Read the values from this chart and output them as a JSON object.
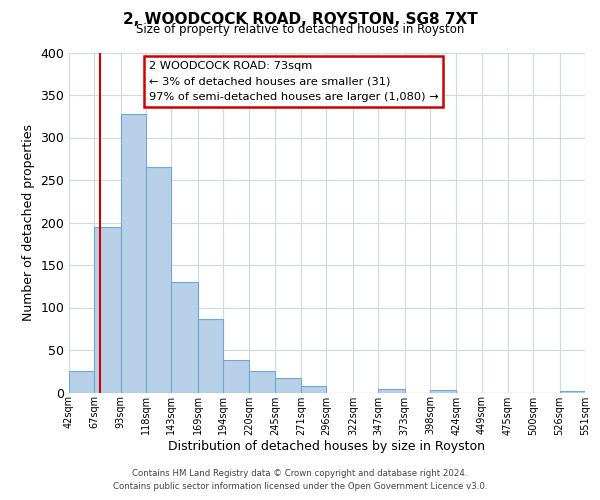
{
  "title": "2, WOODCOCK ROAD, ROYSTON, SG8 7XT",
  "subtitle": "Size of property relative to detached houses in Royston",
  "xlabel": "Distribution of detached houses by size in Royston",
  "ylabel": "Number of detached properties",
  "bins": [
    42,
    67,
    93,
    118,
    143,
    169,
    194,
    220,
    245,
    271,
    296,
    322,
    347,
    373,
    398,
    424,
    449,
    475,
    500,
    526,
    551
  ],
  "bar_heights": [
    25,
    195,
    328,
    265,
    130,
    86,
    38,
    25,
    17,
    8,
    0,
    0,
    4,
    0,
    3,
    0,
    0,
    0,
    0,
    2
  ],
  "bar_color": "#b8d0e8",
  "bar_edge_color": "#6fa8d0",
  "property_line_x": 73,
  "annotation_line1": "2 WOODCOCK ROAD: 73sqm",
  "annotation_line2": "← 3% of detached houses are smaller (31)",
  "annotation_line3": "97% of semi-detached houses are larger (1,080) →",
  "annotation_box_color": "#ffffff",
  "annotation_box_edge": "#cc0000",
  "red_line_color": "#cc0000",
  "ylim": [
    0,
    400
  ],
  "yticks": [
    0,
    50,
    100,
    150,
    200,
    250,
    300,
    350,
    400
  ],
  "footer_line1": "Contains HM Land Registry data © Crown copyright and database right 2024.",
  "footer_line2": "Contains public sector information licensed under the Open Government Licence v3.0.",
  "bg_color": "#ffffff",
  "grid_color": "#d0d8e8"
}
